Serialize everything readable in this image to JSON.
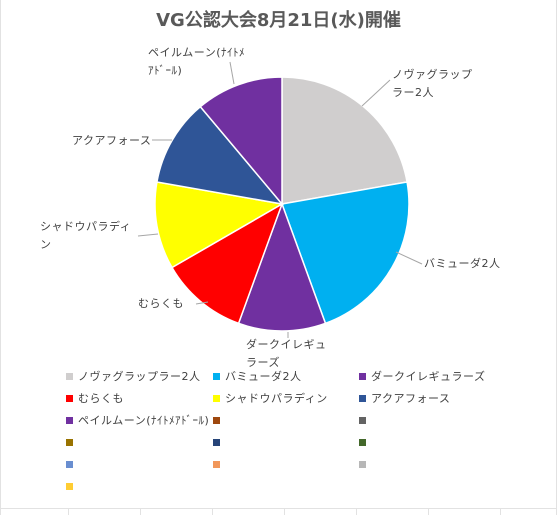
{
  "chart_data": {
    "type": "pie",
    "title": "VG公認大会8月21日(水)開催",
    "slices": [
      {
        "label": "ノヴァグラップラー2人",
        "value": 2,
        "color": "#d0cece"
      },
      {
        "label": "バミューダ2人",
        "value": 2,
        "color": "#00b0f0"
      },
      {
        "label": "ダークイレギュラーズ",
        "value": 1,
        "color": "#7030a0"
      },
      {
        "label": "むらくも",
        "value": 1,
        "color": "#ff0000"
      },
      {
        "label": "シャドウパラディン",
        "value": 1,
        "color": "#ffff00"
      },
      {
        "label": "アクアフォース",
        "value": 1,
        "color": "#2f5597"
      },
      {
        "label": "ペイルムーン(ﾅｲﾄﾒｱﾄﾞｰﾙ)",
        "value": 1,
        "color": "#7030a0"
      }
    ],
    "data_labels": [
      "ノヴァグラップ\nラー2人",
      "バミューダ2人",
      "ダークイレギュ\nラーズ",
      "むらくも",
      "シャドウパラディ\nン",
      "アクアフォース",
      "ペイルムーン(ﾅｲﾄﾒ\nｱﾄﾞｰﾙ)"
    ],
    "legend_placement": "bottom",
    "empty_legend_colors": [
      "#9e480e",
      "#636363",
      "#997300",
      "#264478",
      "#43682b",
      "#698ed0",
      "#f1975a",
      "#b7b7b7",
      "#ffcd33"
    ]
  }
}
